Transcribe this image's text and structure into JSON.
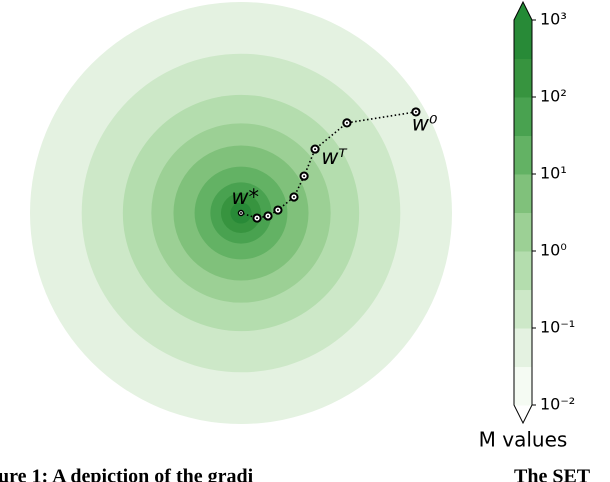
{
  "chart_data": {
    "type": "contour",
    "xlim": [
      -1,
      1
    ],
    "ylim": [
      -1,
      1
    ],
    "contours": [
      {
        "level": 0.0316,
        "radius": 1.0
      },
      {
        "level": 0.1,
        "radius": 0.755
      },
      {
        "level": 0.316,
        "radius": 0.56
      },
      {
        "level": 1,
        "radius": 0.425
      },
      {
        "level": 3.16,
        "radius": 0.32
      },
      {
        "level": 10,
        "radius": 0.22
      },
      {
        "level": 31.6,
        "radius": 0.145
      },
      {
        "level": 100,
        "radius": 0.095
      },
      {
        "level": 316,
        "radius": 0.05
      }
    ],
    "trajectory": {
      "x": [
        0.829,
        0.502,
        0.351,
        0.299,
        0.251,
        0.175,
        0.128,
        0.076,
        0
      ],
      "y": [
        0.479,
        0.427,
        0.303,
        0.175,
        0.076,
        0.014,
        -0.014,
        -0.024,
        0
      ]
    },
    "annotations": [
      {
        "text": "w⁰",
        "x": 0.87,
        "y": 0.42
      },
      {
        "text": "wᵀ",
        "x": 0.44,
        "y": 0.26
      },
      {
        "text": "w*",
        "x": 0.02,
        "y": 0.07
      }
    ],
    "colorbar": {
      "label": "M values",
      "log": true,
      "lim": [
        0.01,
        1000
      ],
      "levels": [
        0.01,
        0.0316,
        0.1,
        0.316,
        1,
        3.16,
        10,
        31.6,
        100,
        316,
        1000
      ],
      "colors": [
        "#f5fbf3",
        "#e4f2e1",
        "#cde8c8",
        "#b4ddae",
        "#9cd095",
        "#80c17b",
        "#63b264",
        "#49a250",
        "#37943f",
        "#288a37"
      ],
      "over_color": "#238b35",
      "ticks": [
        {
          "value": 0.01,
          "label": "10⁻²"
        },
        {
          "value": 0.1,
          "label": "10⁻¹"
        },
        {
          "value": 1,
          "label": "10⁰"
        },
        {
          "value": 10,
          "label": "10¹"
        },
        {
          "value": 100,
          "label": "10²"
        },
        {
          "value": 1000,
          "label": "10³"
        }
      ]
    },
    "caption": [
      "ure 1: A depiction of the gradi",
      "The SET"
    ]
  }
}
